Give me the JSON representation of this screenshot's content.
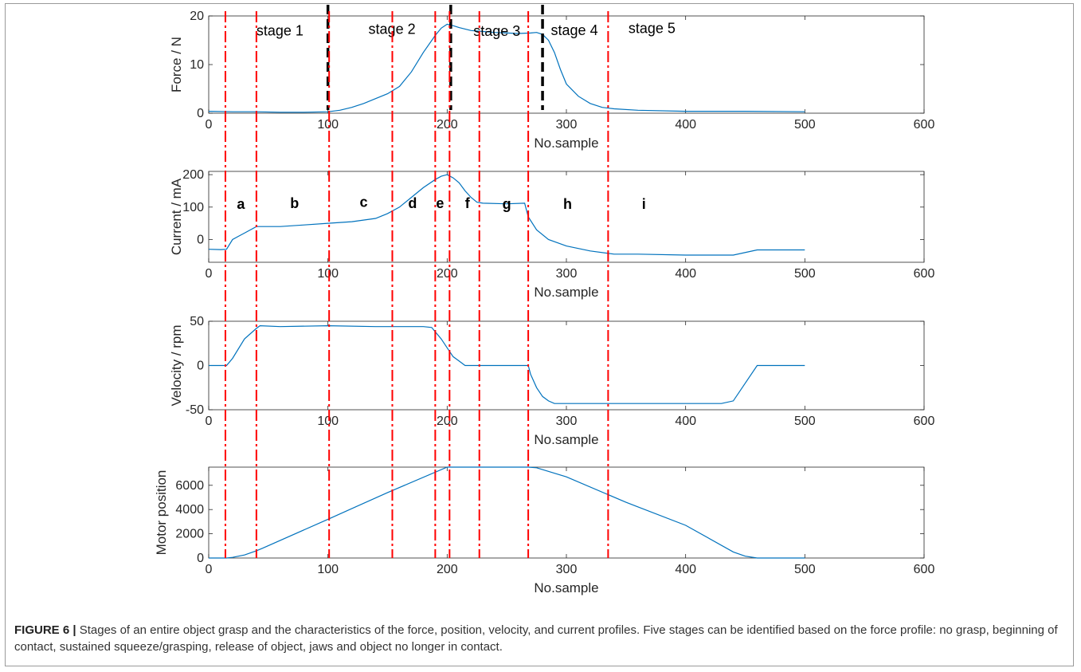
{
  "figure": {
    "caption_label": "FIGURE 6 |",
    "caption_text": " Stages of an entire object grasp and the characteristics of the force, position, velocity, and current profiles. Five stages can be identified based on the force profile: no grasp, beginning of contact, sustained squeeze/grasping, release of object, jaws and object no longer in contact."
  },
  "colors": {
    "series": "#0072bd",
    "stage_divider": "#ff0000",
    "force_divider": "#000000",
    "axis": "#262626"
  },
  "chart_data": [
    {
      "type": "line",
      "xlabel": "No.sample",
      "ylabel": "Force / N",
      "xlim": [
        0,
        600
      ],
      "ylim": [
        0,
        20
      ],
      "xticks": [
        0,
        100,
        200,
        300,
        400,
        500,
        600
      ],
      "yticks": [
        0,
        10,
        20
      ],
      "grid": false,
      "series": [
        {
          "x": [
            0,
            20,
            40,
            60,
            80,
            100,
            110,
            120,
            130,
            140,
            150,
            160,
            170,
            180,
            190,
            195,
            200,
            205,
            210,
            220,
            230,
            240,
            250,
            260,
            270,
            275,
            280,
            285,
            290,
            295,
            300,
            310,
            320,
            330,
            340,
            360,
            400,
            450,
            500
          ],
          "y": [
            0.4,
            0.3,
            0.3,
            0.2,
            0.2,
            0.3,
            0.6,
            1.2,
            2.0,
            3.0,
            4.0,
            5.5,
            8.5,
            12.5,
            16.0,
            17.5,
            18.3,
            18.0,
            17.6,
            17.0,
            16.8,
            16.6,
            16.5,
            16.4,
            16.5,
            16.6,
            16.2,
            15.0,
            12.5,
            9.0,
            6.0,
            3.5,
            2.0,
            1.2,
            0.9,
            0.6,
            0.4,
            0.4,
            0.3
          ]
        }
      ],
      "annotations": [
        {
          "text": "stage 1",
          "x": 40,
          "y": 16
        },
        {
          "text": "stage 2",
          "x": 134,
          "y": 16.3
        },
        {
          "text": "stage 3",
          "x": 222,
          "y": 15.9
        },
        {
          "text": "stage 4",
          "x": 287,
          "y": 16.1
        },
        {
          "text": "stage 5",
          "x": 352,
          "y": 16.5
        }
      ],
      "dashed_markers": [
        100,
        203,
        280
      ]
    },
    {
      "type": "line",
      "xlabel": "No.sample",
      "ylabel": "Current / mA",
      "xlim": [
        0,
        600
      ],
      "ylim": [
        -70,
        210
      ],
      "xticks": [
        0,
        100,
        200,
        300,
        400,
        500,
        600
      ],
      "yticks": [
        0,
        100,
        200
      ],
      "grid": false,
      "series": [
        {
          "x": [
            0,
            10,
            15,
            20,
            25,
            30,
            40,
            60,
            80,
            100,
            120,
            140,
            150,
            160,
            170,
            180,
            190,
            195,
            200,
            205,
            210,
            215,
            220,
            225,
            230,
            250,
            265,
            268,
            275,
            285,
            300,
            320,
            340,
            360,
            400,
            440,
            460,
            480,
            500
          ],
          "y": [
            -30,
            -31,
            -30,
            0,
            10,
            20,
            40,
            40,
            45,
            50,
            55,
            65,
            80,
            100,
            130,
            160,
            185,
            195,
            200,
            190,
            175,
            150,
            130,
            115,
            112,
            110,
            112,
            70,
            30,
            0,
            -20,
            -35,
            -45,
            -45,
            -48,
            -48,
            -32,
            -32,
            -32
          ]
        }
      ],
      "annotations": [
        {
          "text": "a",
          "x": 27,
          "y": 95
        },
        {
          "text": "b",
          "x": 72,
          "y": 97
        },
        {
          "text": "c",
          "x": 130,
          "y": 101
        },
        {
          "text": "d",
          "x": 171,
          "y": 97
        },
        {
          "text": "e",
          "x": 194,
          "y": 97
        },
        {
          "text": "f",
          "x": 217,
          "y": 97
        },
        {
          "text": "g",
          "x": 250,
          "y": 95
        },
        {
          "text": "h",
          "x": 301,
          "y": 95
        },
        {
          "text": "i",
          "x": 365,
          "y": 95
        }
      ]
    },
    {
      "type": "line",
      "xlabel": "No.sample",
      "ylabel": "Velocity / rpm",
      "xlim": [
        0,
        600
      ],
      "ylim": [
        -50,
        50
      ],
      "xticks": [
        0,
        100,
        200,
        300,
        400,
        500,
        600
      ],
      "yticks": [
        -50,
        0,
        50
      ],
      "grid": false,
      "series": [
        {
          "x": [
            0,
            15,
            20,
            30,
            40,
            43,
            60,
            100,
            140,
            180,
            187,
            190,
            195,
            200,
            205,
            210,
            215,
            268,
            270,
            275,
            280,
            285,
            290,
            300,
            350,
            400,
            430,
            440,
            450,
            460,
            500
          ],
          "y": [
            0,
            0,
            8,
            30,
            42,
            45,
            44,
            45,
            44,
            44,
            43,
            38,
            30,
            20,
            10,
            5,
            0,
            0,
            -10,
            -25,
            -35,
            -40,
            -43,
            -43,
            -43,
            -43,
            -43,
            -40,
            -20,
            0,
            0
          ]
        }
      ]
    },
    {
      "type": "line",
      "xlabel": "No.sample",
      "ylabel": "Motor position",
      "xlim": [
        0,
        600
      ],
      "ylim": [
        0,
        7500
      ],
      "xticks": [
        0,
        100,
        200,
        300,
        400,
        500,
        600
      ],
      "yticks": [
        0,
        2000,
        4000,
        6000
      ],
      "grid": false,
      "series": [
        {
          "x": [
            0,
            15,
            20,
            30,
            40,
            45,
            100,
            150,
            200,
            205,
            268,
            275,
            300,
            350,
            400,
            440,
            450,
            460,
            500
          ],
          "y": [
            0,
            0,
            50,
            250,
            600,
            800,
            3200,
            5400,
            7500,
            7500,
            7500,
            7450,
            6700,
            4600,
            2700,
            500,
            150,
            0,
            0
          ]
        }
      ]
    }
  ],
  "stage_dividers": [
    14,
    40,
    101,
    154,
    190,
    202,
    227,
    268,
    335
  ]
}
